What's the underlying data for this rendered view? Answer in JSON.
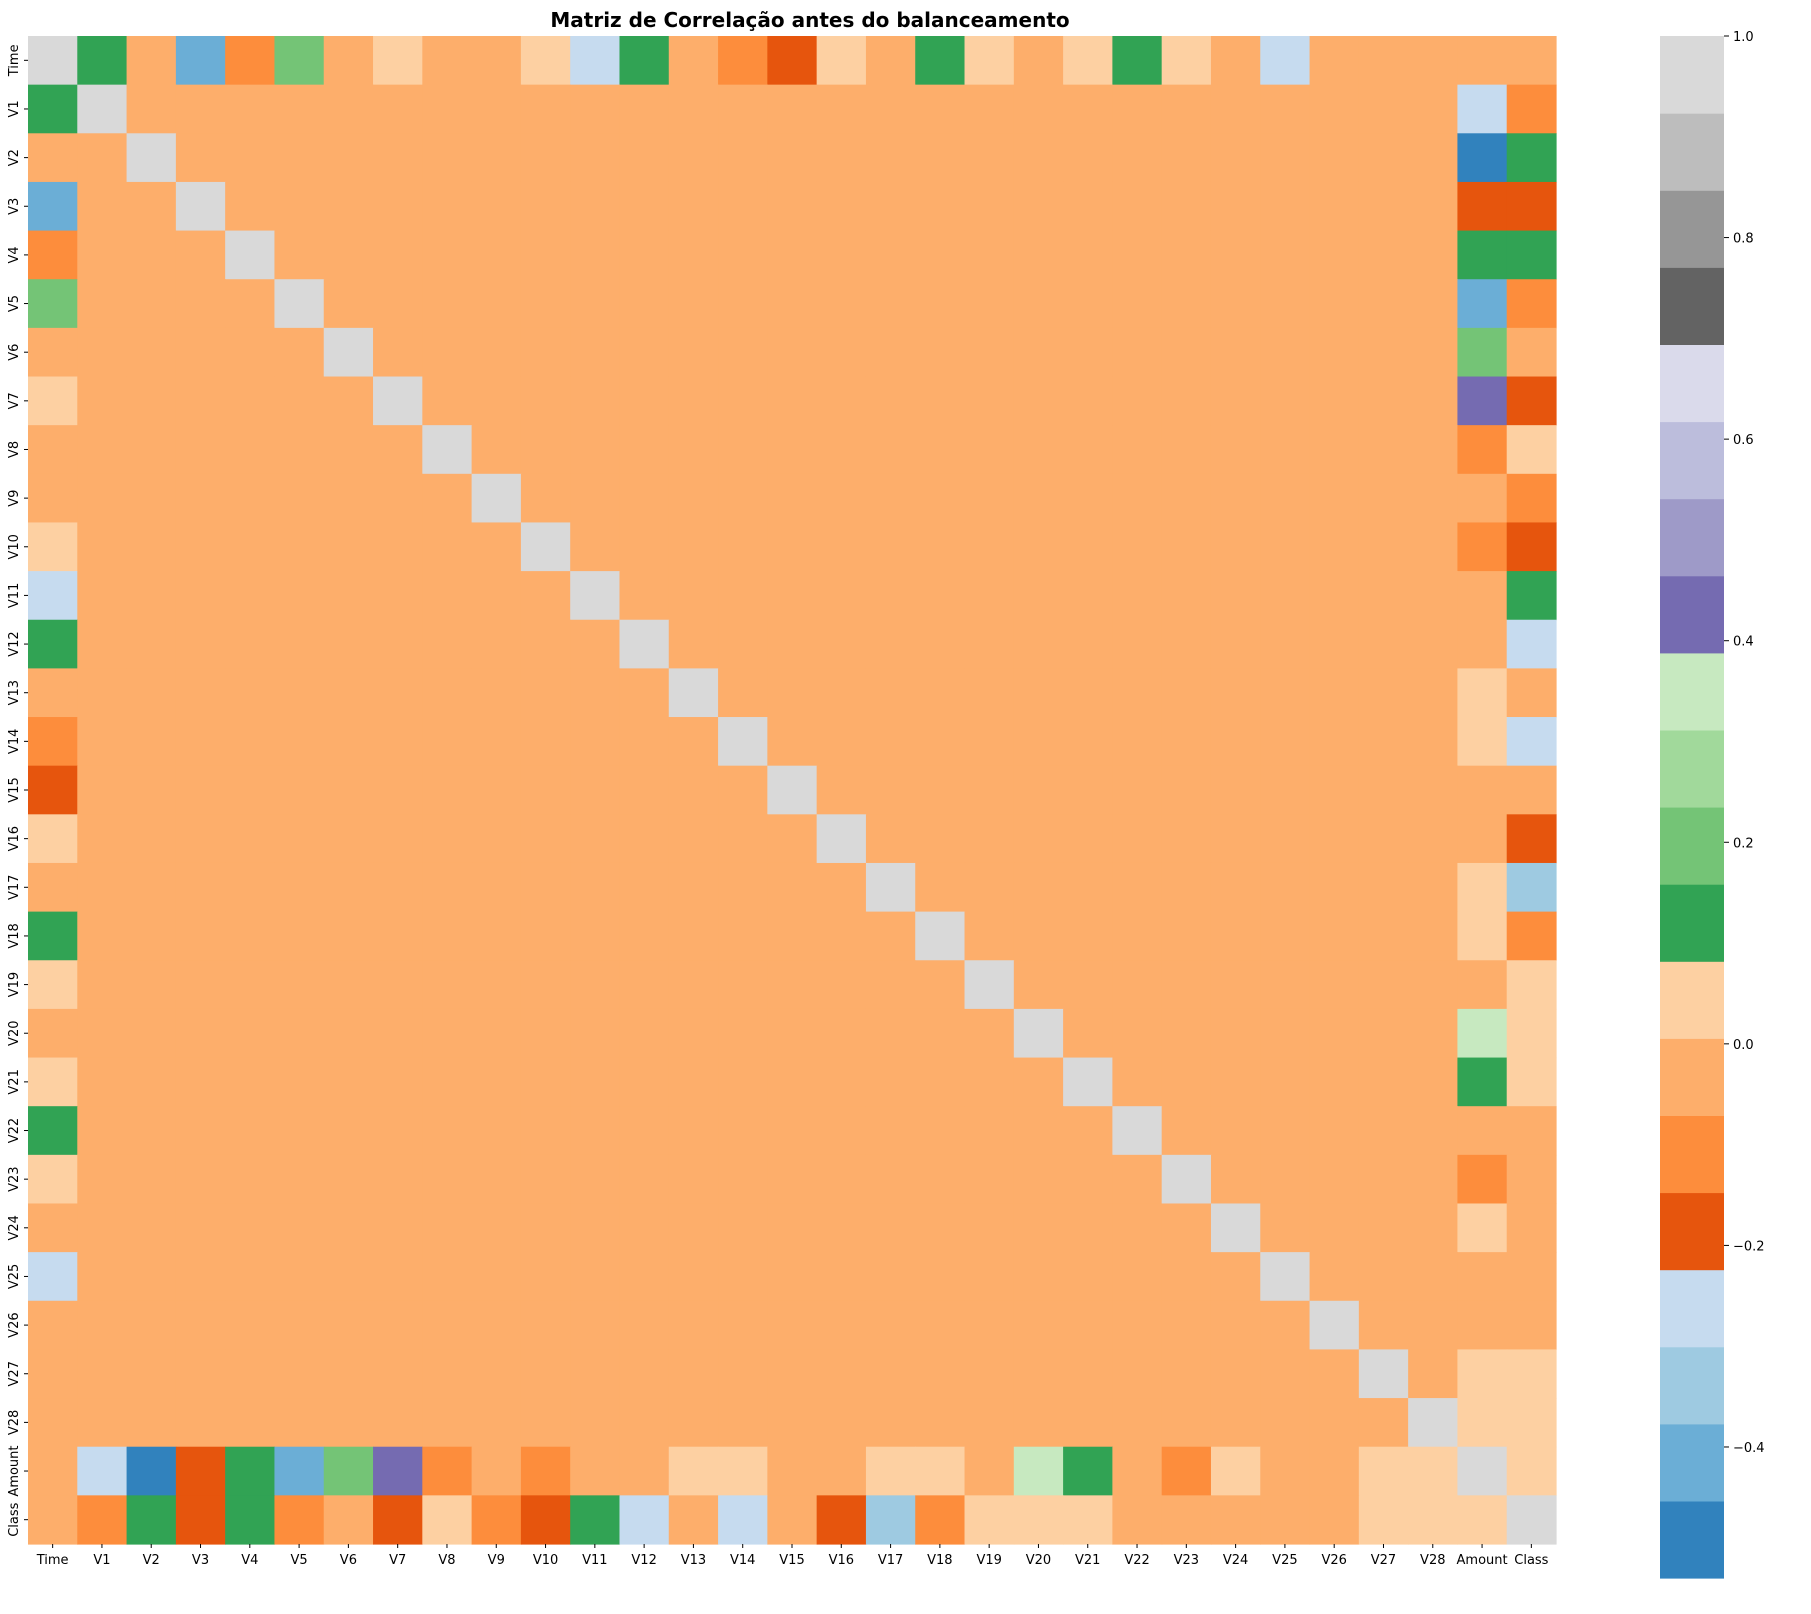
{
  "chart_data": {
    "type": "heatmap",
    "title": "Matriz de Correlação antes do balanceamento",
    "xlabel": "",
    "ylabel": "",
    "labels": [
      "Time",
      "V1",
      "V2",
      "V3",
      "V4",
      "V5",
      "V6",
      "V7",
      "V8",
      "V9",
      "V10",
      "V11",
      "V12",
      "V13",
      "V14",
      "V15",
      "V16",
      "V17",
      "V18",
      "V19",
      "V20",
      "V21",
      "V22",
      "V23",
      "V24",
      "V25",
      "V26",
      "V27",
      "V28",
      "Amount",
      "Class"
    ],
    "colorbar": {
      "vmin": -0.53,
      "vmax": 1.0,
      "ticks": [
        -0.4,
        -0.2,
        0.0,
        0.2,
        0.4,
        0.6,
        0.8,
        1.0
      ],
      "tick_labels": [
        "−0.4",
        "−0.2",
        "0.0",
        "0.2",
        "0.4",
        "0.6",
        "0.8",
        "1.0"
      ],
      "colors": [
        "#3182bd",
        "#6baed6",
        "#9ecae1",
        "#c6dbef",
        "#e6550d",
        "#fd8d3c",
        "#fdae6b",
        "#fdd0a2",
        "#31a354",
        "#74c476",
        "#a1d99b",
        "#c7e9c0",
        "#756bb1",
        "#9e9ac8",
        "#bcbddc",
        "#dadaeb",
        "#636363",
        "#969696",
        "#bdbdbd",
        "#d9d9d9"
      ]
    },
    "offdiag_default": -0.02,
    "exceptions": [
      [
        "Time",
        "V1",
        0.12
      ],
      [
        "Time",
        "V2",
        -0.01
      ],
      [
        "Time",
        "V3",
        -0.42
      ],
      [
        "Time",
        "V4",
        -0.1
      ],
      [
        "Time",
        "V5",
        0.17
      ],
      [
        "Time",
        "V6",
        -0.06
      ],
      [
        "Time",
        "V7",
        0.08
      ],
      [
        "Time",
        "V8",
        -0.04
      ],
      [
        "Time",
        "V9",
        -0.01
      ],
      [
        "Time",
        "V10",
        0.03
      ],
      [
        "Time",
        "V11",
        -0.25
      ],
      [
        "Time",
        "V12",
        0.12
      ],
      [
        "Time",
        "V13",
        -0.07
      ],
      [
        "Time",
        "V14",
        -0.1
      ],
      [
        "Time",
        "V15",
        -0.18
      ],
      [
        "Time",
        "V16",
        0.01
      ],
      [
        "Time",
        "V17",
        -0.07
      ],
      [
        "Time",
        "V18",
        0.09
      ],
      [
        "Time",
        "V19",
        0.03
      ],
      [
        "Time",
        "V20",
        -0.05
      ],
      [
        "Time",
        "V21",
        0.04
      ],
      [
        "Time",
        "V22",
        0.14
      ],
      [
        "Time",
        "V23",
        0.05
      ],
      [
        "Time",
        "V24",
        -0.02
      ],
      [
        "Time",
        "V25",
        -0.23
      ],
      [
        "Time",
        "V26",
        -0.04
      ],
      [
        "Time",
        "V27",
        -0.01
      ],
      [
        "Time",
        "V28",
        -0.01
      ],
      [
        "Time",
        "Amount",
        -0.01
      ],
      [
        "Time",
        "Class",
        -0.01
      ],
      [
        "V1",
        "Amount",
        -0.23
      ],
      [
        "V1",
        "Class",
        -0.1
      ],
      [
        "V2",
        "Amount",
        -0.53
      ],
      [
        "V2",
        "Class",
        0.09
      ],
      [
        "V3",
        "Amount",
        -0.21
      ],
      [
        "V3",
        "Class",
        -0.19
      ],
      [
        "V4",
        "Amount",
        0.1
      ],
      [
        "V4",
        "Class",
        0.13
      ],
      [
        "V5",
        "Amount",
        -0.39
      ],
      [
        "V5",
        "Class",
        -0.09
      ],
      [
        "V6",
        "Amount",
        0.22
      ],
      [
        "V6",
        "Class",
        -0.04
      ],
      [
        "V7",
        "Amount",
        0.4
      ],
      [
        "V7",
        "Class",
        -0.19
      ],
      [
        "V8",
        "Amount",
        -0.1
      ],
      [
        "V8",
        "Class",
        0.02
      ],
      [
        "V9",
        "Amount",
        -0.04
      ],
      [
        "V9",
        "Class",
        -0.1
      ],
      [
        "V10",
        "Amount",
        -0.1
      ],
      [
        "V10",
        "Class",
        -0.22
      ],
      [
        "V11",
        "Amount",
        -0.0
      ],
      [
        "V11",
        "Class",
        0.15
      ],
      [
        "V12",
        "Amount",
        -0.01
      ],
      [
        "V12",
        "Class",
        -0.26
      ],
      [
        "V13",
        "Amount",
        0.01
      ],
      [
        "V13",
        "Class",
        -0.0
      ],
      [
        "V14",
        "Amount",
        0.03
      ],
      [
        "V14",
        "Class",
        -0.3
      ],
      [
        "V15",
        "Amount",
        -0.0
      ],
      [
        "V15",
        "Class",
        -0.0
      ],
      [
        "V16",
        "Amount",
        -0.0
      ],
      [
        "V16",
        "Class",
        -0.2
      ],
      [
        "V17",
        "Amount",
        0.01
      ],
      [
        "V17",
        "Class",
        -0.33
      ],
      [
        "V18",
        "Amount",
        0.04
      ],
      [
        "V18",
        "Class",
        -0.11
      ],
      [
        "V19",
        "Amount",
        -0.06
      ],
      [
        "V19",
        "Class",
        0.03
      ],
      [
        "V20",
        "Amount",
        0.34
      ],
      [
        "V20",
        "Class",
        0.02
      ],
      [
        "V21",
        "Amount",
        0.11
      ],
      [
        "V21",
        "Class",
        0.04
      ],
      [
        "V22",
        "Amount",
        -0.06
      ],
      [
        "V22",
        "Class",
        -0.0
      ],
      [
        "V23",
        "Amount",
        -0.11
      ],
      [
        "V23",
        "Class",
        -0.0
      ],
      [
        "V24",
        "Amount",
        0.01
      ],
      [
        "V24",
        "Class",
        -0.01
      ],
      [
        "V25",
        "Amount",
        -0.05
      ],
      [
        "V25",
        "Class",
        -0.0
      ],
      [
        "V26",
        "Amount",
        -0.0
      ],
      [
        "V26",
        "Class",
        -0.0
      ],
      [
        "V27",
        "Amount",
        0.03
      ],
      [
        "V27",
        "Class",
        0.02
      ],
      [
        "V28",
        "Amount",
        0.01
      ],
      [
        "V28",
        "Class",
        0.01
      ],
      [
        "Amount",
        "Class",
        0.01
      ]
    ]
  }
}
